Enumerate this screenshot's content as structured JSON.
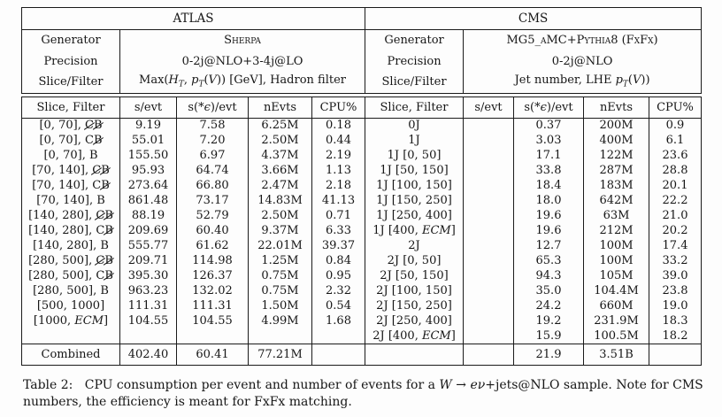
{
  "table": {
    "left": {
      "title": "ATLAS",
      "generator_label": "Generator",
      "generator": "Sherpa",
      "precision_label": "Precision",
      "precision": "0-2j@NLO+3-4j@LO",
      "slice_label": "Slice/Filter",
      "slice": "Max(<i>H<sub>T</sub></i>, <i>p<sub>T</sub></i>(<i>V</i>)) [GeV], Hadron filter"
    },
    "right": {
      "title": "CMS",
      "generator_label": "Generator",
      "generator": "MG5_aMC+Pythia8 (FxFx)",
      "precision_label": "Precision",
      "precision": "0-2j@NLO",
      "slice_label": "Slice/Filter",
      "slice": "Jet number, LHE <i>p<sub>T</sub></i>(<i>V</i>))"
    },
    "columns": [
      "Slice, Filter",
      "s/evt",
      "s(*<i>ϵ</i>)/evt",
      "nEvts",
      "CPU%",
      "Slice, Filter",
      "s/evt",
      "s(*<i>ϵ</i>)/evt",
      "nEvts",
      "CPU%"
    ],
    "rows": [
      [
        "[0, 70], <span class='x'>C</span><span class='x'>B</span>",
        "9.19",
        "7.58",
        "6.25M",
        "0.18",
        "0J",
        "",
        "0.37",
        "200M",
        "0.9"
      ],
      [
        "[0, 70], C<span class='x'>B</span>",
        "55.01",
        "7.20",
        "2.50M",
        "0.44",
        "1J",
        "",
        "3.03",
        "400M",
        "6.1"
      ],
      [
        "[0, 70], B",
        "155.50",
        "6.97",
        "4.37M",
        "2.19",
        "1J [0, 50]",
        "",
        "17.1",
        "122M",
        "23.6"
      ],
      [
        "[70, 140], <span class='x'>C</span><span class='x'>B</span>",
        "95.93",
        "64.74",
        "3.66M",
        "1.13",
        "1J [50, 150]",
        "",
        "33.8",
        "287M",
        "28.8"
      ],
      [
        "[70, 140], C<span class='x'>B</span>",
        "273.64",
        "66.80",
        "2.47M",
        "2.18",
        "1J [100, 150]",
        "",
        "18.4",
        "183M",
        "20.1"
      ],
      [
        "[70, 140], B",
        "861.48",
        "73.17",
        "14.83M",
        "41.13",
        "1J [150, 250]",
        "",
        "18.0",
        "642M",
        "22.2"
      ],
      [
        "[140, 280], <span class='x'>C</span><span class='x'>B</span>",
        "88.19",
        "52.79",
        "2.50M",
        "0.71",
        "1J [250, 400]",
        "",
        "19.6",
        "63M",
        "21.0"
      ],
      [
        "[140, 280], C<span class='x'>B</span>",
        "209.69",
        "60.40",
        "9.37M",
        "6.33",
        "1J [400, <i>ECM</i>]",
        "",
        "19.6",
        "212M",
        "20.2"
      ],
      [
        "[140, 280], B",
        "555.77",
        "61.62",
        "22.01M",
        "39.37",
        "2J",
        "",
        "12.7",
        "100M",
        "17.4"
      ],
      [
        "[280, 500], <span class='x'>C</span><span class='x'>B</span>",
        "209.71",
        "114.98",
        "1.25M",
        "0.84",
        "2J [0, 50]",
        "",
        "65.3",
        "100M",
        "33.2"
      ],
      [
        "[280, 500], C<span class='x'>B</span>",
        "395.30",
        "126.37",
        "0.75M",
        "0.95",
        "2J [50, 150]",
        "",
        "94.3",
        "105M",
        "39.0"
      ],
      [
        "[280, 500], B",
        "963.23",
        "132.02",
        "0.75M",
        "2.32",
        "2J [100, 150]",
        "",
        "35.0",
        "104.4M",
        "23.8"
      ],
      [
        "[500, 1000]",
        "111.31",
        "111.31",
        "1.50M",
        "0.54",
        "2J [150, 250]",
        "",
        "24.2",
        "660M",
        "19.0"
      ],
      [
        "[1000, <i>ECM</i>]",
        "104.55",
        "104.55",
        "4.99M",
        "1.68",
        "2J [250, 400]",
        "",
        "19.2",
        "231.9M",
        "18.3"
      ],
      [
        "",
        "",
        "",
        "",
        "",
        "2J [400, <i>ECM</i>]",
        "",
        "15.9",
        "100.5M",
        "18.2"
      ]
    ],
    "combined_row": [
      "Combined",
      "402.40",
      "60.41",
      "77.21M",
      "",
      "",
      "",
      "21.9",
      "3.51B",
      ""
    ]
  },
  "caption": "Table 2:&nbsp;&nbsp; CPU consumption per event and number of events for a <i>W</i> → <i>eν</i>+jets@NLO sample. Note for CMS numbers, the efficiency is meant for FxFx matching."
}
